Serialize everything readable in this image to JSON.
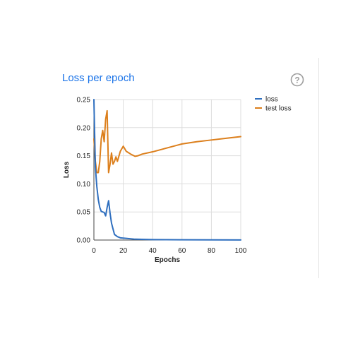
{
  "colors": {
    "title": "#1a73e8",
    "loss": "#2f6fbf",
    "test_loss": "#dc7f1c",
    "grid": "#dddddd",
    "help_icon": "#9e9e9e"
  },
  "help_icon": "help-circle-icon",
  "chart_data": {
    "type": "line",
    "title": "Loss per epoch",
    "xlabel": "Epochs",
    "ylabel": "Loss",
    "xlim": [
      0,
      100
    ],
    "ylim": [
      0,
      0.25
    ],
    "xticks": [
      "0",
      "20",
      "40",
      "60",
      "80",
      "100"
    ],
    "yticks": [
      "0.00",
      "0.05",
      "0.10",
      "0.15",
      "0.20",
      "0.25"
    ],
    "grid": true,
    "legend_position": "right",
    "series": [
      {
        "name": "loss",
        "color": "#2f6fbf",
        "points": [
          [
            0,
            0.25
          ],
          [
            1,
            0.13
          ],
          [
            2,
            0.095
          ],
          [
            3,
            0.072
          ],
          [
            4,
            0.058
          ],
          [
            5,
            0.051
          ],
          [
            6,
            0.05
          ],
          [
            7,
            0.049
          ],
          [
            8,
            0.043
          ],
          [
            9,
            0.058
          ],
          [
            10,
            0.07
          ],
          [
            11,
            0.048
          ],
          [
            12,
            0.03
          ],
          [
            13,
            0.02
          ],
          [
            14,
            0.01
          ],
          [
            16,
            0.006
          ],
          [
            18,
            0.004
          ],
          [
            22,
            0.003
          ],
          [
            28,
            0.0015
          ],
          [
            40,
            0.0008
          ],
          [
            60,
            0.0005
          ],
          [
            80,
            0.0003
          ],
          [
            100,
            0.0002
          ]
        ]
      },
      {
        "name": "test loss",
        "color": "#dc7f1c",
        "points": [
          [
            0,
            0.18
          ],
          [
            1,
            0.14
          ],
          [
            2,
            0.12
          ],
          [
            3,
            0.12
          ],
          [
            4,
            0.14
          ],
          [
            5,
            0.18
          ],
          [
            6,
            0.195
          ],
          [
            7,
            0.175
          ],
          [
            8,
            0.215
          ],
          [
            9,
            0.23
          ],
          [
            10,
            0.12
          ],
          [
            11,
            0.135
          ],
          [
            12,
            0.155
          ],
          [
            13,
            0.135
          ],
          [
            14,
            0.14
          ],
          [
            15,
            0.148
          ],
          [
            16,
            0.14
          ],
          [
            18,
            0.158
          ],
          [
            20,
            0.167
          ],
          [
            22,
            0.158
          ],
          [
            25,
            0.153
          ],
          [
            28,
            0.149
          ],
          [
            30,
            0.15
          ],
          [
            33,
            0.153
          ],
          [
            40,
            0.157
          ],
          [
            50,
            0.164
          ],
          [
            60,
            0.171
          ],
          [
            70,
            0.175
          ],
          [
            80,
            0.178
          ],
          [
            90,
            0.181
          ],
          [
            100,
            0.184
          ]
        ]
      }
    ]
  }
}
